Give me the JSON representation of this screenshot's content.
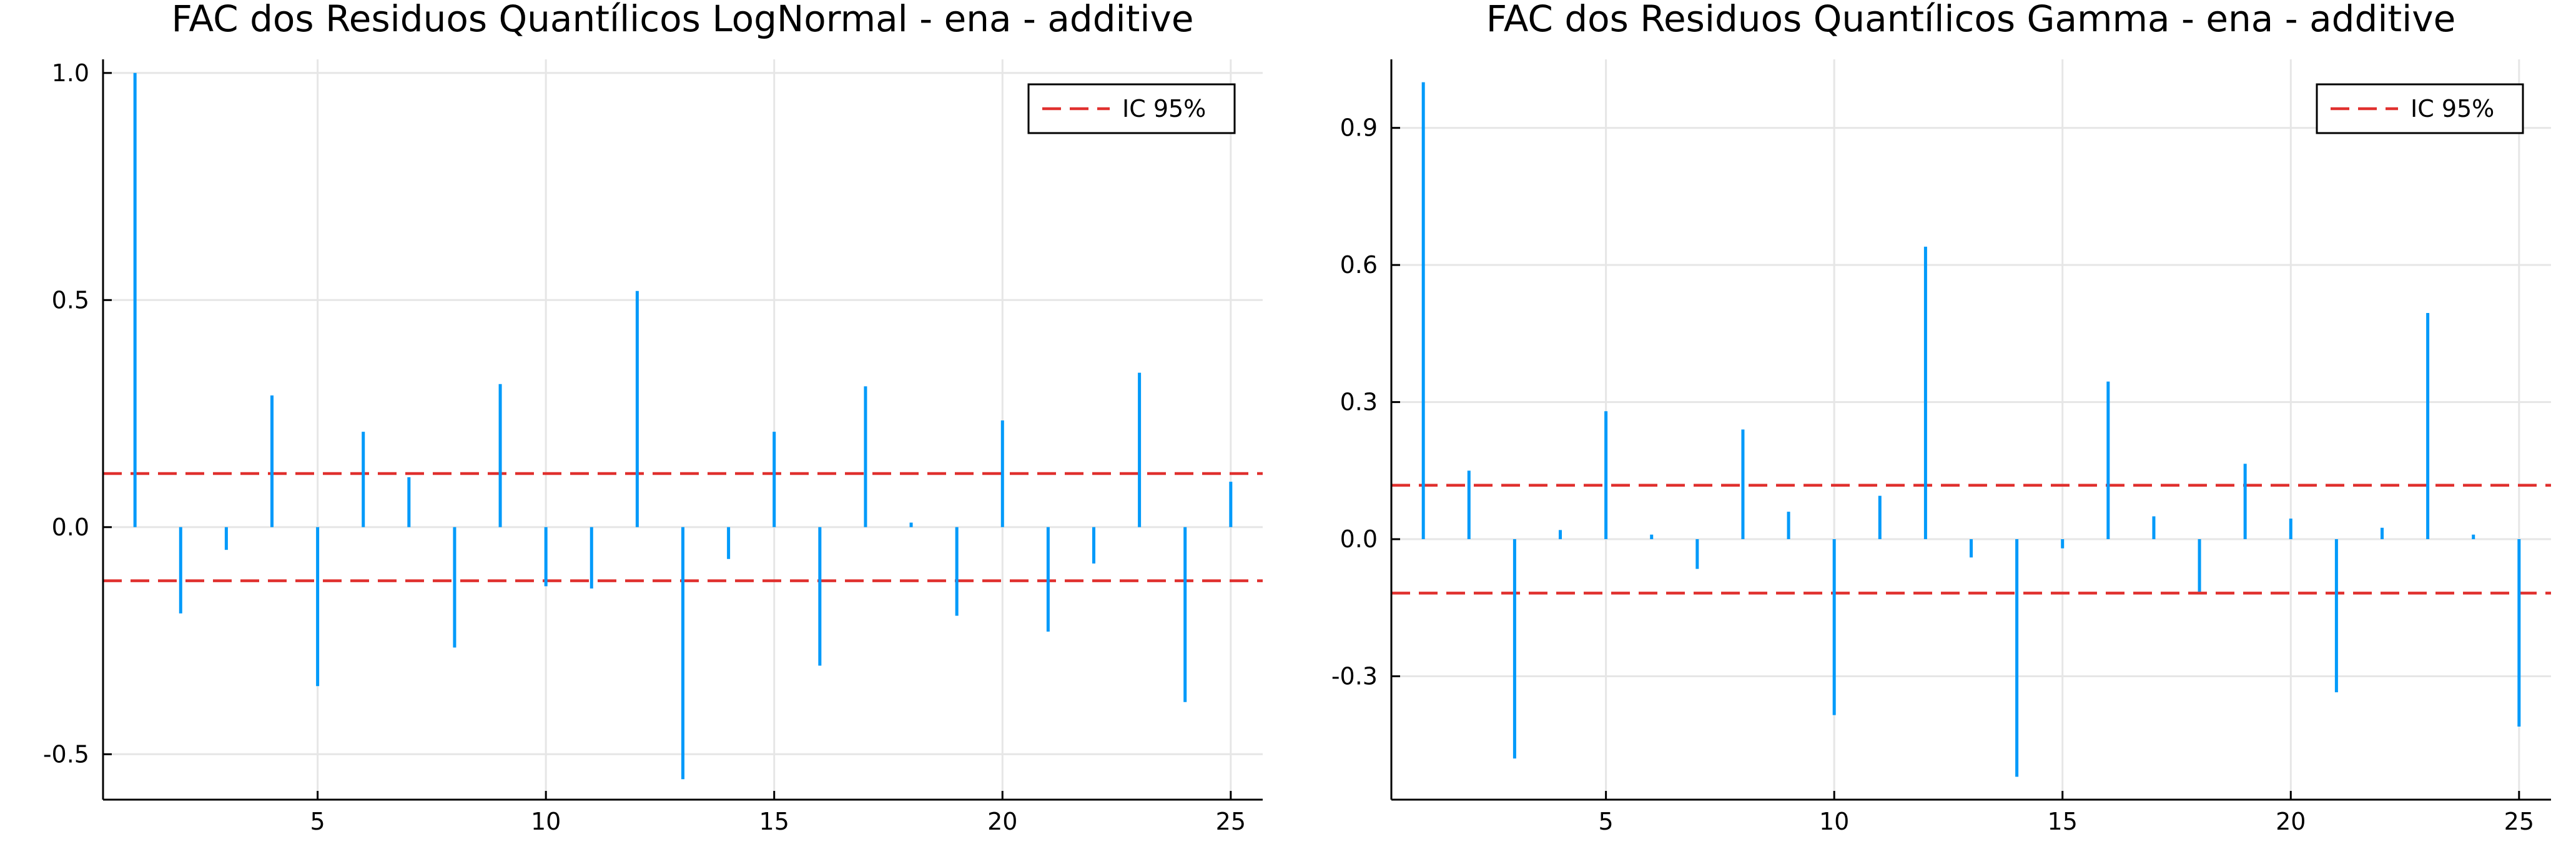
{
  "colors": {
    "bar": "#009AFA",
    "ci_line": "#E0302E",
    "grid": "#E6E6E6",
    "axis": "#000000",
    "background": "#FFFFFF"
  },
  "chart_data": [
    {
      "type": "bar",
      "subtype": "stem",
      "title": "FAC dos Residuos Quantílicos LogNormal - ena - additive",
      "xlabel": "",
      "ylabel": "",
      "xlim": [
        0.3,
        25.7
      ],
      "ylim": [
        -0.6,
        1.03
      ],
      "grid": true,
      "xticks": [
        5,
        10,
        15,
        20,
        25
      ],
      "yticks": [
        -0.5,
        0.0,
        0.5,
        1.0
      ],
      "ytick_labels": [
        "-0.5",
        "0.0",
        "0.5",
        "1.0"
      ],
      "x": [
        1,
        2,
        3,
        4,
        5,
        6,
        7,
        8,
        9,
        10,
        11,
        12,
        13,
        14,
        15,
        16,
        17,
        18,
        19,
        20,
        21,
        22,
        23,
        24,
        25
      ],
      "values": [
        1.0,
        -0.19,
        -0.05,
        0.29,
        -0.35,
        0.21,
        0.11,
        -0.265,
        0.315,
        -0.13,
        -0.135,
        0.52,
        -0.555,
        -0.07,
        0.21,
        -0.305,
        0.31,
        0.01,
        -0.195,
        0.235,
        -0.23,
        -0.08,
        0.34,
        -0.385,
        0.1
      ],
      "ci": 0.118,
      "legend": {
        "label": "IC 95%",
        "position": "top-right"
      }
    },
    {
      "type": "bar",
      "subtype": "stem",
      "title": "FAC dos Residuos Quantílicos Gamma - ena - additive",
      "xlabel": "",
      "ylabel": "",
      "xlim": [
        0.3,
        25.7
      ],
      "ylim": [
        -0.57,
        1.05
      ],
      "grid": true,
      "xticks": [
        5,
        10,
        15,
        20,
        25
      ],
      "yticks": [
        -0.3,
        0.0,
        0.3,
        0.6,
        0.9
      ],
      "ytick_labels": [
        "-0.3",
        "0.0",
        "0.3",
        "0.6",
        "0.9"
      ],
      "x": [
        1,
        2,
        3,
        4,
        5,
        6,
        7,
        8,
        9,
        10,
        11,
        12,
        13,
        14,
        15,
        16,
        17,
        18,
        19,
        20,
        21,
        22,
        23,
        24,
        25
      ],
      "values": [
        1.0,
        0.15,
        -0.48,
        0.02,
        0.28,
        0.01,
        -0.065,
        0.24,
        0.06,
        -0.385,
        0.095,
        0.64,
        -0.04,
        -0.52,
        -0.02,
        0.345,
        0.05,
        -0.115,
        0.165,
        0.045,
        -0.335,
        0.025,
        0.495,
        0.01,
        -0.41
      ],
      "ci": 0.118,
      "legend": {
        "label": "IC 95%",
        "position": "top-right"
      }
    }
  ]
}
